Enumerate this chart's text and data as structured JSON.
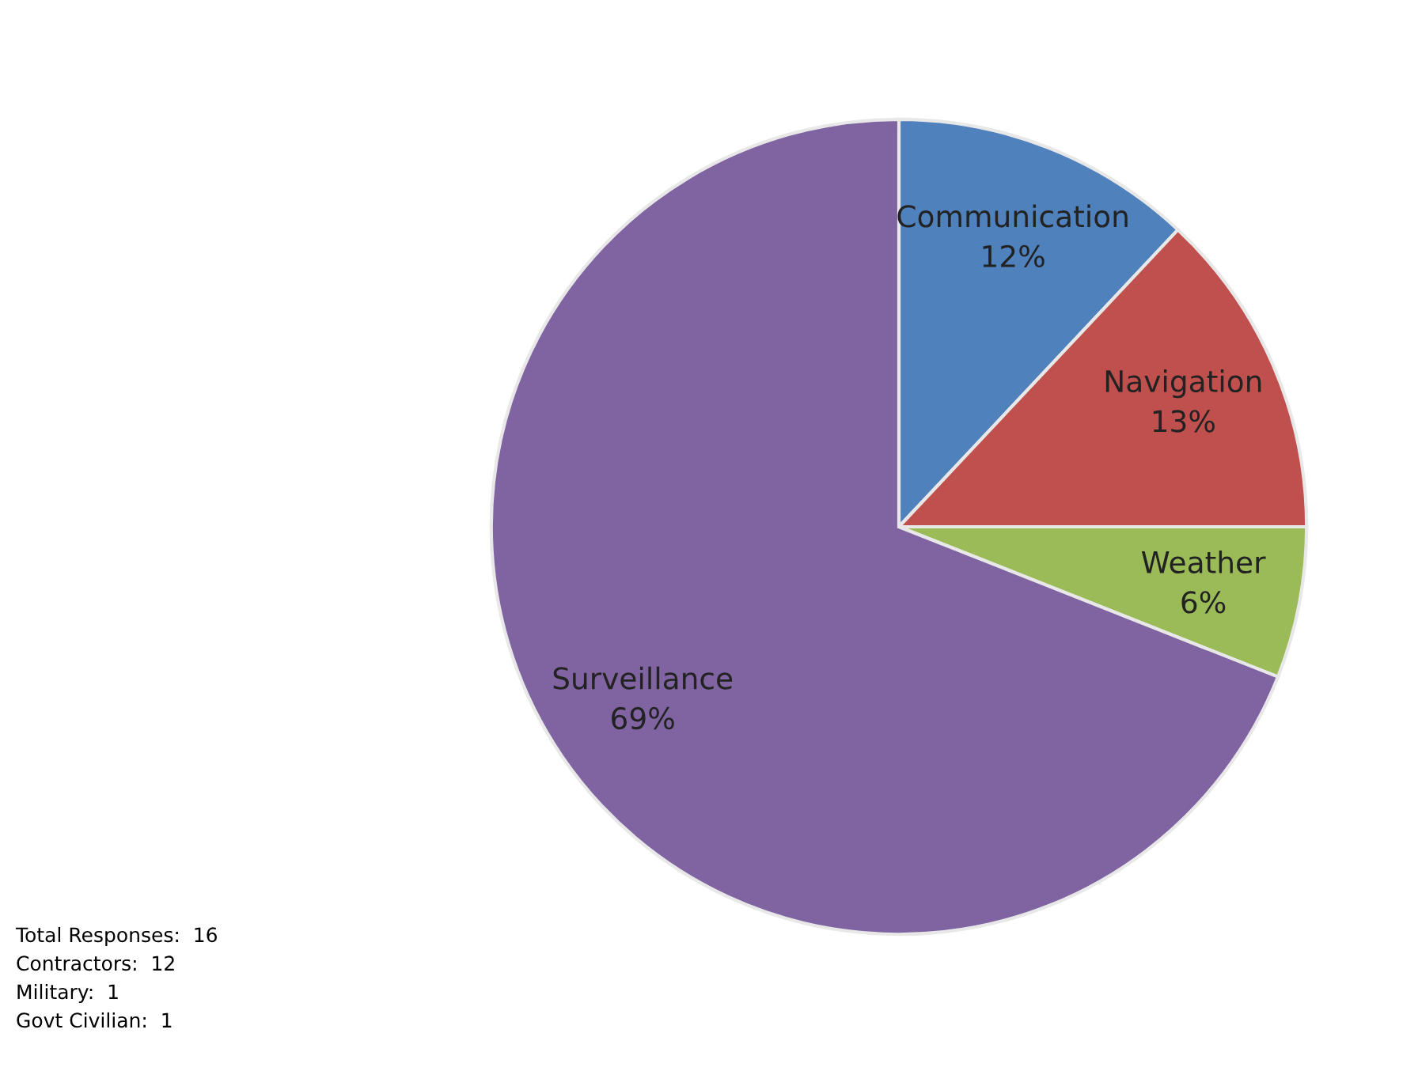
{
  "chart_data": {
    "type": "pie",
    "categories": [
      "Communication",
      "Navigation",
      "Weather",
      "Surveillance"
    ],
    "values": [
      12,
      13,
      6,
      69
    ],
    "colors": [
      "#4f81bd",
      "#c0504d",
      "#9bbb59",
      "#8064a2"
    ],
    "value_labels": [
      "12%",
      "13%",
      "6%",
      "69%"
    ],
    "annotations": [
      "Total Responses:  16",
      "Contractors:  12",
      "Military:  1",
      "Govt Civilian:  1"
    ]
  }
}
